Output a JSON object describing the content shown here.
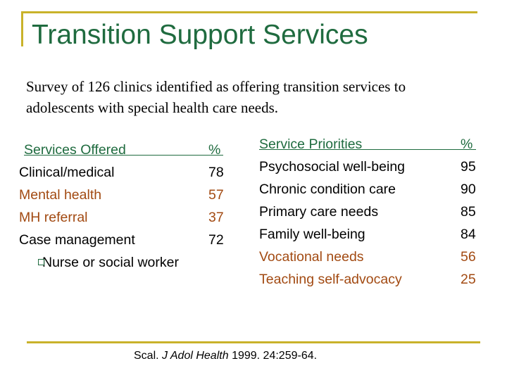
{
  "slide": {
    "title": "Transition Support Services",
    "intro": "Survey of 126 clinics identified as offering transition services to adolescents with special health care needs."
  },
  "services_offered": {
    "header": "Services Offered",
    "pct_header": "%",
    "rows": [
      {
        "label": "Clinical/medical",
        "pct": "78"
      },
      {
        "label": "Mental health",
        "pct": "57"
      },
      {
        "label": "MH referral",
        "pct": "37"
      },
      {
        "label": "Case management",
        "pct": "72"
      }
    ],
    "sub_item": "Nurse or social worker"
  },
  "service_priorities": {
    "header": "Service Priorities",
    "pct_header": "%",
    "rows": [
      {
        "label": "Psychosocial well-being",
        "pct": "95"
      },
      {
        "label": "Chronic condition care",
        "pct": "90"
      },
      {
        "label": "Primary care needs",
        "pct": "85"
      },
      {
        "label": "Family well-being",
        "pct": "84"
      },
      {
        "label": "Vocational needs",
        "pct": "56"
      },
      {
        "label": "Teaching self-advocacy",
        "pct": "25"
      }
    ]
  },
  "citation": {
    "author": "Scal.",
    "journal": "J Adol Health",
    "details": "1999. 24:259-64."
  },
  "colors": {
    "title": "#1f6b3f",
    "accent_rule": "#c9b22a",
    "secondary_text": "#a24a12"
  }
}
